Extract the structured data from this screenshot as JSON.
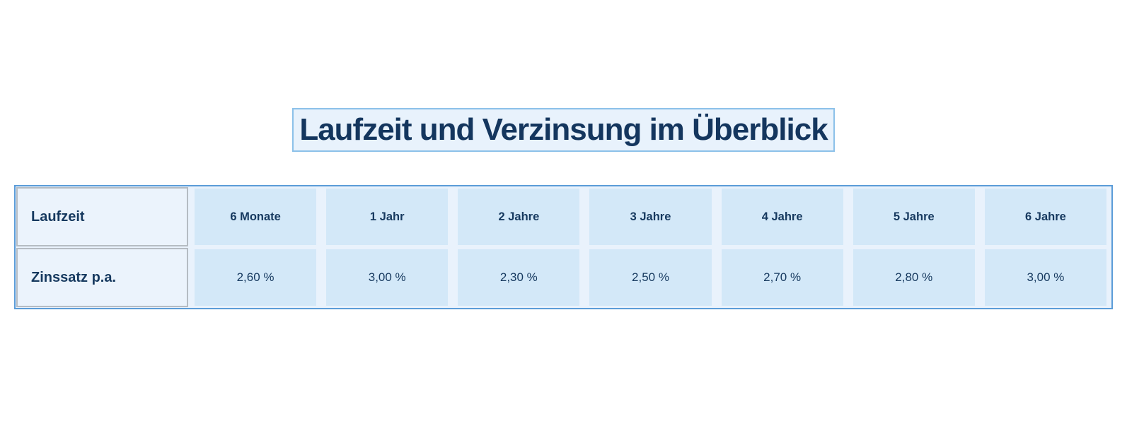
{
  "page": {
    "title": "Laufzeit und Verzinsung im Überblick"
  },
  "table": {
    "corner_label": "Laufzeit",
    "column_headers": [
      "6 Monate",
      "1 Jahr",
      "2 Jahre",
      "3 Jahre",
      "4 Jahre",
      "5 Jahre",
      "6 Jahre"
    ],
    "rows": [
      {
        "label": "Zinssatz p.a.",
        "values": [
          "2,60 %",
          "3,00 %",
          "2,30 %",
          "2,50 %",
          "2,70 %",
          "2,80 %",
          "3,00 %"
        ]
      }
    ]
  },
  "chart_data": {
    "type": "table",
    "title": "Laufzeit und Verzinsung im Überblick",
    "columns": [
      "Laufzeit",
      "6 Monate",
      "1 Jahr",
      "2 Jahre",
      "3 Jahre",
      "4 Jahre",
      "5 Jahre",
      "6 Jahre"
    ],
    "rows": [
      [
        "Zinssatz p.a.",
        "2,60 %",
        "3,00 %",
        "2,30 %",
        "2,50 %",
        "2,70 %",
        "2,80 %",
        "3,00 %"
      ]
    ],
    "rates_percent": [
      2.6,
      3.0,
      2.3,
      2.5,
      2.7,
      2.8,
      3.0
    ]
  },
  "colors": {
    "title_text": "#14365e",
    "title_box_background": "#e8f2fc",
    "title_box_border": "#8cc1e9",
    "table_border": "#5b9cd8",
    "table_gap_background": "#e9f2fc",
    "data_cell_background": "#d3e8f8",
    "label_cell_background": "#ebf3fc",
    "label_cell_border": "#b5bcc3",
    "table_text": "#16395f"
  }
}
